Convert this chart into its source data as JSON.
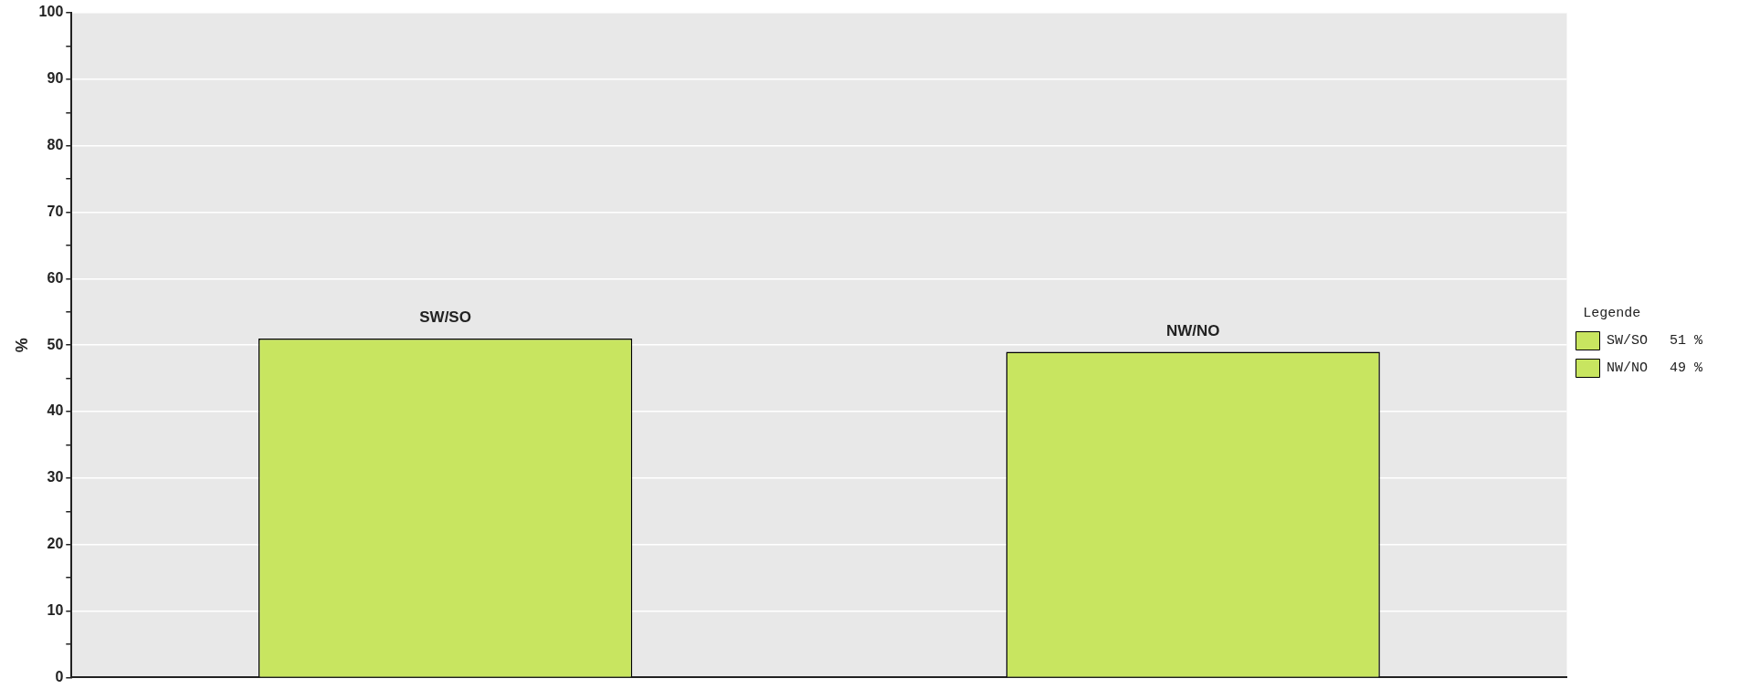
{
  "chart_data": {
    "type": "bar",
    "categories": [
      "SW/SO",
      "NW/NO"
    ],
    "series": [
      {
        "name": "SW/SO",
        "color": "#c8e560",
        "values": [
          51,
          null
        ]
      },
      {
        "name": "NW/NO",
        "color": "#c8e560",
        "values": [
          null,
          49
        ]
      }
    ],
    "annotations": [
      "51 %",
      "49 %"
    ],
    "ylabel": "%",
    "ylim": [
      0,
      100
    ],
    "yticks": [
      0,
      {
        "value": 5,
        "label": null
      },
      10,
      {
        "value": 15,
        "label": null
      },
      20,
      {
        "value": 25,
        "label": null
      },
      30,
      {
        "value": 35,
        "label": null
      },
      40,
      {
        "value": 45,
        "label": null
      },
      50,
      {
        "value": 55,
        "label": null
      },
      60,
      {
        "value": 65,
        "label": null
      },
      70,
      {
        "value": 75,
        "label": null
      },
      80,
      {
        "value": 85,
        "label": null
      },
      90,
      {
        "value": 95,
        "label": null
      },
      100
    ],
    "grid": "y",
    "legend": "right",
    "legend_title": "Legende",
    "tick_labels": "y"
  }
}
